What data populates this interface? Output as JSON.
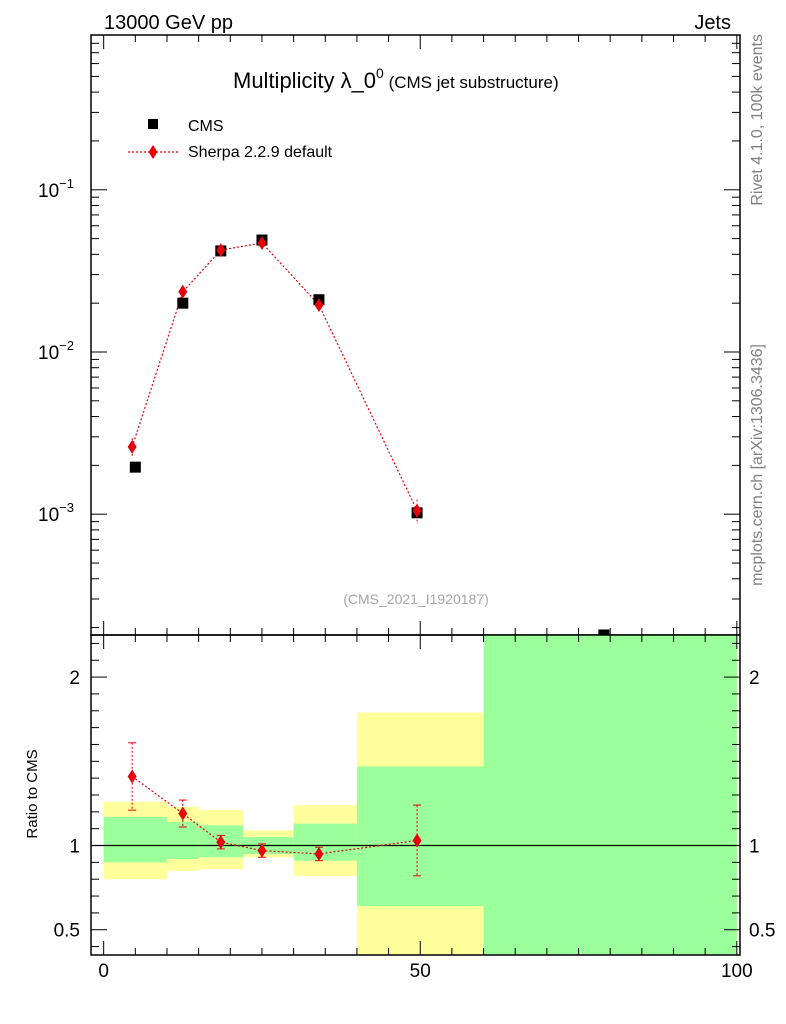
{
  "header": {
    "left": "13000 GeV pp",
    "right": "Jets"
  },
  "side_labels": {
    "rivet": "Rivet 4.1.0,  100k events",
    "mcplots": "mcplots.cern.ch [arXiv:1306.3436]"
  },
  "chart_data": {
    "type": "scatter",
    "title": "Multiplicity λ_0",
    "title_sup": "0",
    "title_suffix": " (CMS jet substructure)",
    "watermark": "(CMS_2021_I1920187)",
    "legend": {
      "placement": "top-left",
      "entries": [
        "CMS",
        "Sherpa 2.2.9 default"
      ]
    },
    "main": {
      "yscale": "log",
      "ylim": [
        0.00018,
        0.9
      ],
      "y_tick_labels": [
        {
          "value": 0.1,
          "base": "10",
          "exp": "−1"
        },
        {
          "value": 0.01,
          "base": "10",
          "exp": "−2"
        },
        {
          "value": 0.001,
          "base": "10",
          "exp": "−3"
        }
      ]
    },
    "ratio": {
      "ylabel": "Ratio to CMS",
      "ylim": [
        0.35,
        2.25
      ],
      "y_ticks": [
        0.5,
        1,
        2
      ],
      "y_tick_labels": [
        "0.5",
        "1",
        "2"
      ],
      "reference_line": 1
    },
    "xlim": [
      -2,
      100.5
    ],
    "x_ticks": [
      0,
      50,
      100
    ],
    "x_tick_labels": [
      "0",
      "50",
      "100"
    ],
    "bins": [
      [
        0,
        10
      ],
      [
        10,
        15
      ],
      [
        15,
        22
      ],
      [
        22,
        30
      ],
      [
        30,
        40
      ],
      [
        40,
        60
      ],
      [
        60,
        100
      ]
    ],
    "series": [
      {
        "name": "CMS",
        "x": [
          5,
          12.5,
          18.5,
          25,
          34,
          49.5,
          79
        ],
        "y": [
          0.00195,
          0.02,
          0.042,
          0.049,
          0.021,
          0.00102,
          0.00018
        ],
        "band_inner": [
          [
            0.9,
            1.17
          ],
          [
            0.92,
            1.14
          ],
          [
            0.93,
            1.12
          ],
          [
            0.95,
            1.05
          ],
          [
            0.91,
            1.13
          ],
          [
            0.64,
            1.47
          ],
          [
            0.35,
            2.25
          ]
        ],
        "band_outer": [
          [
            0.8,
            1.26
          ],
          [
            0.85,
            1.23
          ],
          [
            0.86,
            1.21
          ],
          [
            0.93,
            1.09
          ],
          [
            0.82,
            1.24
          ],
          [
            0.35,
            1.79
          ],
          [
            0.35,
            2.25
          ]
        ]
      },
      {
        "name": "Sherpa 2.2.9 default",
        "x": [
          4.5,
          12.5,
          18.5,
          25,
          34,
          49.5
        ],
        "y": [
          0.0026,
          0.0235,
          0.0425,
          0.047,
          0.0195,
          0.00105
        ],
        "y_err_low": [
          0.00035,
          0.0018,
          0.0017,
          0.0018,
          0.0009,
          0.00018
        ],
        "y_err_high": [
          0.00035,
          0.0018,
          0.0017,
          0.0018,
          0.0009,
          0.00018
        ],
        "ratio": [
          1.41,
          1.19,
          1.02,
          0.97,
          0.95,
          1.03
        ],
        "ratio_err": [
          0.2,
          0.08,
          0.04,
          0.04,
          0.04,
          0.21
        ]
      }
    ],
    "colors": {
      "data": "#000000",
      "mc": "#e8000b",
      "band_inner": "#9bff9b",
      "band_outer": "#ffff9b"
    }
  }
}
